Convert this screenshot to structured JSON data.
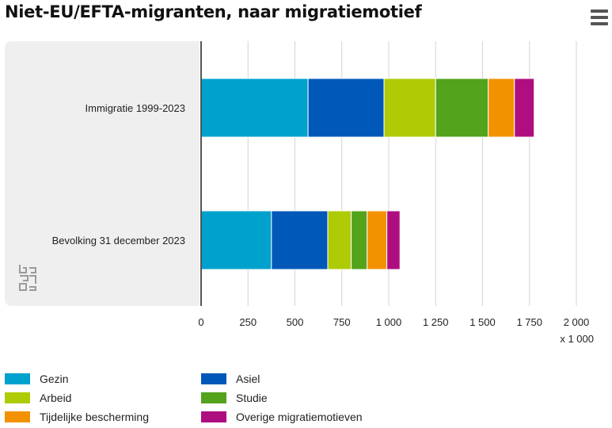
{
  "header": {
    "title": "Niet-EU/EFTA-migranten, naar migratiemotief"
  },
  "menu": {
    "icon": "hamburger-menu-icon"
  },
  "logo": {
    "icon": "cbs-logo-icon"
  },
  "chart_data": {
    "type": "bar",
    "orientation": "horizontal",
    "stacked": true,
    "title": "Niet-EU/EFTA-migranten, naar migratiemotief",
    "categories": [
      "Immigratie 1999-2023",
      "Bevolking 31 december 2023"
    ],
    "series": [
      {
        "name": "Gezin",
        "color": "#00a1cd",
        "values": [
          570,
          375
        ]
      },
      {
        "name": "Asiel",
        "color": "#0058b8",
        "values": [
          405,
          300
        ]
      },
      {
        "name": "Arbeid",
        "color": "#afcb05",
        "values": [
          275,
          125
        ]
      },
      {
        "name": "Studie",
        "color": "#53a31d",
        "values": [
          280,
          85
        ]
      },
      {
        "name": "Tijdelijke bescherming",
        "color": "#f39200",
        "values": [
          140,
          105
        ]
      },
      {
        "name": "Overige migratiemotieven",
        "color": "#af0e80",
        "values": [
          105,
          70
        ]
      }
    ],
    "xlim": [
      0,
      2000
    ],
    "xticks": [
      0,
      250,
      500,
      750,
      1000,
      1250,
      1500,
      1750,
      2000
    ],
    "xtick_labels": [
      "0",
      "250",
      "500",
      "750",
      "1 000",
      "1 250",
      "1 500",
      "1 750",
      "2 000"
    ],
    "x_unit": "x 1 000",
    "grid": true,
    "legend_position": "bottom"
  }
}
